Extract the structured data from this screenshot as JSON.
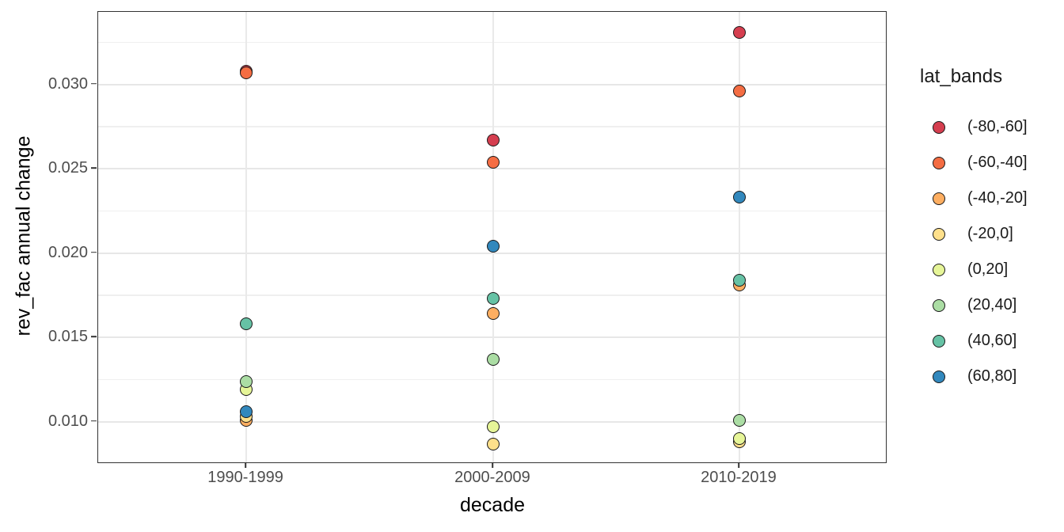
{
  "chart_data": {
    "type": "scatter",
    "title": "",
    "xlabel": "decade",
    "ylabel": "rev_fac annual change",
    "categories": [
      "1990-1999",
      "2000-2009",
      "2010-2019"
    ],
    "y_tick_labels": [
      "0.010",
      "0.015",
      "0.020",
      "0.025",
      "0.030"
    ],
    "y_minor_gridlines": [
      0.0125,
      0.0175,
      0.0225,
      0.0275,
      0.0325
    ],
    "ylim": [
      0.0076,
      0.0343
    ],
    "grid": true,
    "legend": {
      "title": "lat_bands",
      "position": "right"
    },
    "style": {
      "point_stroke_color": "#1a1a1a",
      "panel_border_color": "#333333",
      "gridline_color": "#e7e7e7",
      "tick_text_color": "#4d4d4d"
    },
    "series": [
      {
        "name": "(-80,-60]",
        "color": "#D53E4F",
        "values": [
          0.0308,
          0.0267,
          0.0331
        ]
      },
      {
        "name": "(-60,-40]",
        "color": "#F46D43",
        "values": [
          0.0307,
          0.0254,
          0.0296
        ]
      },
      {
        "name": "(-40,-20]",
        "color": "#FDAE61",
        "values": [
          0.0101,
          0.0164,
          0.0181
        ]
      },
      {
        "name": "(-20,0]",
        "color": "#FEE08B",
        "values": [
          0.0103,
          0.0087,
          0.0088
        ]
      },
      {
        "name": "(0,20]",
        "color": "#E6F598",
        "values": [
          0.0119,
          0.0097,
          0.009
        ]
      },
      {
        "name": "(20,40]",
        "color": "#ABDDA4",
        "values": [
          0.0124,
          0.0137,
          0.0101
        ]
      },
      {
        "name": "(40,60]",
        "color": "#66C2A5",
        "values": [
          0.0158,
          0.0173,
          0.0184
        ]
      },
      {
        "name": "(60,80]",
        "color": "#3288BD",
        "values": [
          0.0106,
          0.0204,
          0.0233
        ]
      }
    ]
  }
}
